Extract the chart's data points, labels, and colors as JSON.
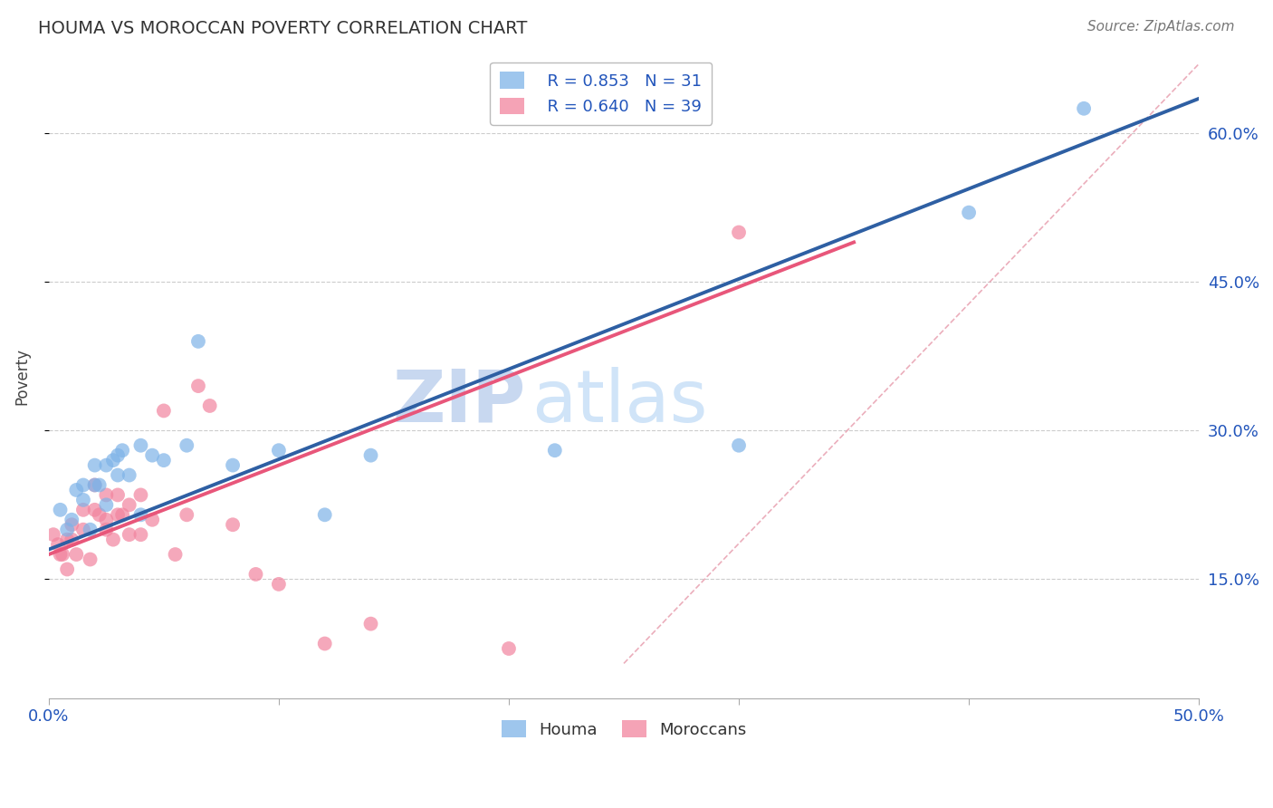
{
  "title": "HOUMA VS MOROCCAN POVERTY CORRELATION CHART",
  "source": "Source: ZipAtlas.com",
  "ylabel": "Poverty",
  "y_tick_labels": [
    "15.0%",
    "30.0%",
    "45.0%",
    "60.0%"
  ],
  "y_tick_values": [
    0.15,
    0.3,
    0.45,
    0.6
  ],
  "xlim": [
    0.0,
    0.5
  ],
  "ylim": [
    0.03,
    0.68
  ],
  "legend_blue_r": "R = 0.853",
  "legend_blue_n": "N = 31",
  "legend_pink_r": "R = 0.640",
  "legend_pink_n": "N = 39",
  "legend_label_blue": "Houma",
  "legend_label_pink": "Moroccans",
  "blue_color": "#7EB3E8",
  "pink_color": "#F2849E",
  "blue_line_color": "#2E5FA3",
  "pink_line_color": "#E8567A",
  "ref_line_color": "#E8A0B0",
  "watermark_zip": "ZIP",
  "watermark_atlas": "atlas",
  "blue_scatter_x": [
    0.005,
    0.008,
    0.01,
    0.012,
    0.015,
    0.015,
    0.018,
    0.02,
    0.02,
    0.022,
    0.025,
    0.025,
    0.028,
    0.03,
    0.03,
    0.032,
    0.035,
    0.04,
    0.04,
    0.045,
    0.05,
    0.06,
    0.065,
    0.08,
    0.1,
    0.12,
    0.14,
    0.22,
    0.3,
    0.4,
    0.45
  ],
  "blue_scatter_y": [
    0.22,
    0.2,
    0.21,
    0.24,
    0.23,
    0.245,
    0.2,
    0.245,
    0.265,
    0.245,
    0.225,
    0.265,
    0.27,
    0.255,
    0.275,
    0.28,
    0.255,
    0.285,
    0.215,
    0.275,
    0.27,
    0.285,
    0.39,
    0.265,
    0.28,
    0.215,
    0.275,
    0.28,
    0.285,
    0.52,
    0.625
  ],
  "pink_scatter_x": [
    0.002,
    0.004,
    0.005,
    0.006,
    0.008,
    0.008,
    0.01,
    0.01,
    0.012,
    0.015,
    0.015,
    0.018,
    0.02,
    0.02,
    0.022,
    0.025,
    0.025,
    0.025,
    0.028,
    0.03,
    0.03,
    0.032,
    0.035,
    0.035,
    0.04,
    0.04,
    0.045,
    0.05,
    0.055,
    0.06,
    0.065,
    0.07,
    0.08,
    0.09,
    0.1,
    0.12,
    0.14,
    0.2,
    0.3
  ],
  "pink_scatter_y": [
    0.195,
    0.185,
    0.175,
    0.175,
    0.16,
    0.19,
    0.19,
    0.205,
    0.175,
    0.2,
    0.22,
    0.17,
    0.245,
    0.22,
    0.215,
    0.21,
    0.235,
    0.2,
    0.19,
    0.215,
    0.235,
    0.215,
    0.225,
    0.195,
    0.235,
    0.195,
    0.21,
    0.32,
    0.175,
    0.215,
    0.345,
    0.325,
    0.205,
    0.155,
    0.145,
    0.085,
    0.105,
    0.08,
    0.5
  ],
  "blue_line_x0": 0.0,
  "blue_line_y0": 0.18,
  "blue_line_x1": 0.5,
  "blue_line_y1": 0.635,
  "pink_line_x0": 0.0,
  "pink_line_y0": 0.175,
  "pink_line_x1": 0.35,
  "pink_line_y1": 0.49,
  "ref_line_x0": 0.25,
  "ref_line_y0": 0.065,
  "ref_line_x1": 0.5,
  "ref_line_y1": 0.67
}
